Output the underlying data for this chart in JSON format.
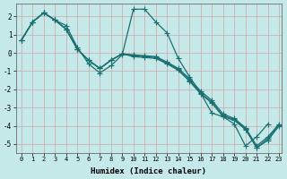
{
  "xlabel": "Humidex (Indice chaleur)",
  "ylabel": "",
  "xlim": [
    -0.5,
    23.2
  ],
  "ylim": [
    -5.5,
    2.7
  ],
  "yticks": [
    -5,
    -4,
    -3,
    -2,
    -1,
    0,
    1,
    2
  ],
  "xticks": [
    0,
    1,
    2,
    3,
    4,
    5,
    6,
    7,
    8,
    9,
    10,
    11,
    12,
    13,
    14,
    15,
    16,
    17,
    18,
    19,
    20,
    21,
    22,
    23
  ],
  "background_color": "#c5e8e8",
  "grid_color": "#b0c8c8",
  "line_color": "#1a7070",
  "lines": [
    {
      "x": [
        0,
        1,
        2,
        3,
        4,
        5,
        6,
        7,
        8,
        9,
        10,
        11,
        12,
        13,
        14,
        15,
        16,
        17,
        18,
        19,
        20,
        21,
        22,
        23
      ],
      "y": [
        0.7,
        1.7,
        2.2,
        1.8,
        1.5,
        0.3,
        -0.6,
        -1.1,
        -0.7,
        -0.1,
        2.4,
        2.4,
        1.7,
        1.1,
        -0.3,
        -1.3,
        -2.2,
        -3.3,
        -3.5,
        -3.9,
        -5.1,
        -4.6,
        -3.9,
        null
      ]
    },
    {
      "x": [
        0,
        1,
        2,
        3,
        4,
        5,
        6,
        7,
        8,
        9,
        10,
        11,
        12,
        13,
        14,
        15,
        16,
        17,
        18,
        19,
        20,
        21,
        22,
        23
      ],
      "y": [
        0.7,
        1.7,
        2.2,
        1.8,
        1.3,
        0.2,
        -0.4,
        -0.85,
        -0.4,
        -0.05,
        -0.1,
        -0.15,
        -0.2,
        -0.5,
        -0.85,
        -1.4,
        -2.1,
        -2.6,
        -3.35,
        -3.6,
        -4.1,
        -5.1,
        -4.6,
        -3.9
      ]
    },
    {
      "x": [
        0,
        1,
        2,
        3,
        4,
        5,
        6,
        7,
        8,
        9,
        10,
        11,
        12,
        13,
        14,
        15,
        16,
        17,
        18,
        19,
        20,
        21,
        22,
        23
      ],
      "y": [
        0.7,
        1.7,
        2.2,
        1.8,
        1.3,
        0.2,
        -0.4,
        -0.85,
        -0.4,
        -0.05,
        -0.15,
        -0.2,
        -0.25,
        -0.55,
        -0.9,
        -1.5,
        -2.2,
        -2.7,
        -3.45,
        -3.65,
        -4.15,
        -5.2,
        -4.7,
        -3.95
      ]
    },
    {
      "x": [
        0,
        1,
        2,
        3,
        4,
        5,
        6,
        7,
        8,
        9,
        10,
        11,
        12,
        13,
        14,
        15,
        16,
        17,
        18,
        19,
        20,
        21,
        22,
        23
      ],
      "y": [
        0.7,
        1.7,
        2.2,
        1.8,
        1.3,
        0.2,
        -0.4,
        -0.85,
        -0.4,
        -0.05,
        -0.2,
        -0.25,
        -0.3,
        -0.6,
        -0.95,
        -1.55,
        -2.25,
        -2.75,
        -3.5,
        -3.7,
        -4.2,
        -5.2,
        -4.8,
        -4.0
      ]
    }
  ],
  "marker": "+",
  "markersize": 4,
  "linewidth": 0.9
}
